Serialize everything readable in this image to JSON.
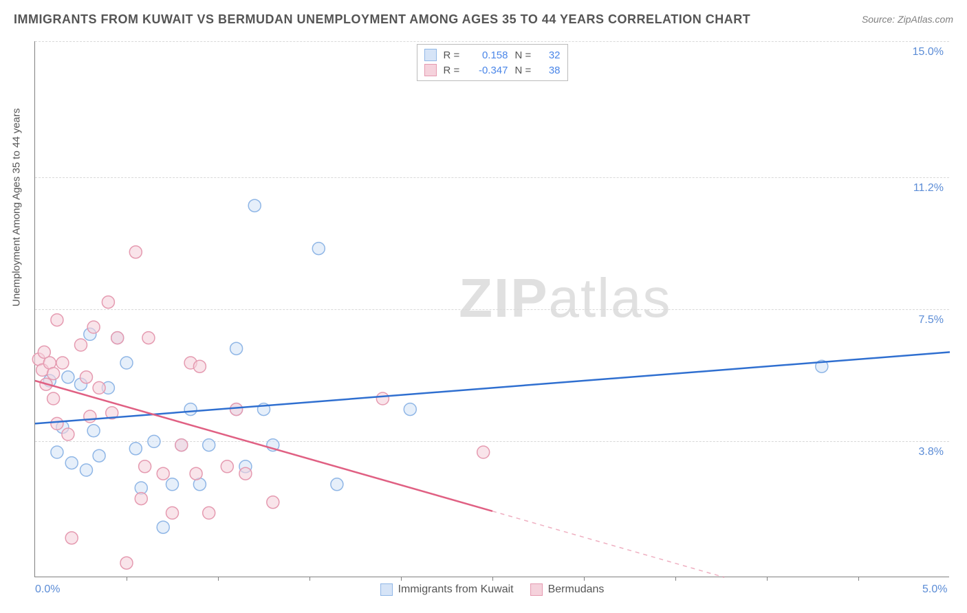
{
  "title": "IMMIGRANTS FROM KUWAIT VS BERMUDAN UNEMPLOYMENT AMONG AGES 35 TO 44 YEARS CORRELATION CHART",
  "source": "Source: ZipAtlas.com",
  "y_axis_title": "Unemployment Among Ages 35 to 44 years",
  "watermark_zip": "ZIP",
  "watermark_atlas": "atlas",
  "chart": {
    "type": "scatter",
    "xlim": [
      0.0,
      5.0
    ],
    "ylim": [
      0.0,
      15.0
    ],
    "x_ticks_no_label": [
      0.5,
      1.0,
      1.5,
      2.0,
      2.5,
      3.0,
      3.5,
      4.0,
      4.5
    ],
    "x_labels": [
      {
        "x": 0.0,
        "text": "0.0%"
      },
      {
        "x": 5.0,
        "text": "5.0%"
      }
    ],
    "y_gridlines": [
      {
        "y": 3.8,
        "label": "3.8%"
      },
      {
        "y": 7.5,
        "label": "7.5%"
      },
      {
        "y": 11.2,
        "label": "11.2%"
      },
      {
        "y": 15.0,
        "label": "15.0%"
      }
    ],
    "background_color": "#ffffff",
    "grid_color": "#d8d8d8",
    "axis_color": "#808080",
    "series": [
      {
        "id": "kuwait",
        "legend_label": "Immigrants from Kuwait",
        "marker_color": "#8fb6e6",
        "marker_fill": "#d6e4f7",
        "marker_fill_opacity": 0.6,
        "marker_radius": 9,
        "line_color": "#2f6fd0",
        "line_width": 2.5,
        "R": "0.158",
        "N": "32",
        "trend": {
          "x0": 0.0,
          "y0": 4.3,
          "x1": 5.0,
          "y1": 6.3,
          "solid_until_x": 5.0
        },
        "points": [
          [
            0.08,
            5.5
          ],
          [
            0.12,
            3.5
          ],
          [
            0.15,
            4.2
          ],
          [
            0.18,
            5.6
          ],
          [
            0.2,
            3.2
          ],
          [
            0.25,
            5.4
          ],
          [
            0.28,
            3.0
          ],
          [
            0.3,
            6.8
          ],
          [
            0.32,
            4.1
          ],
          [
            0.35,
            3.4
          ],
          [
            0.4,
            5.3
          ],
          [
            0.45,
            6.7
          ],
          [
            0.5,
            6.0
          ],
          [
            0.55,
            3.6
          ],
          [
            0.58,
            2.5
          ],
          [
            0.65,
            3.8
          ],
          [
            0.7,
            1.4
          ],
          [
            0.75,
            2.6
          ],
          [
            0.8,
            3.7
          ],
          [
            0.85,
            4.7
          ],
          [
            0.9,
            2.6
          ],
          [
            0.95,
            3.7
          ],
          [
            1.1,
            6.4
          ],
          [
            1.1,
            4.7
          ],
          [
            1.15,
            3.1
          ],
          [
            1.2,
            10.4
          ],
          [
            1.25,
            4.7
          ],
          [
            1.3,
            3.7
          ],
          [
            1.55,
            9.2
          ],
          [
            1.65,
            2.6
          ],
          [
            2.05,
            4.7
          ],
          [
            4.3,
            5.9
          ]
        ]
      },
      {
        "id": "bermudans",
        "legend_label": "Bermudans",
        "marker_color": "#e59ab0",
        "marker_fill": "#f5d2dc",
        "marker_fill_opacity": 0.6,
        "marker_radius": 9,
        "line_color": "#e06083",
        "line_width": 2.5,
        "R": "-0.347",
        "N": "38",
        "trend": {
          "x0": 0.0,
          "y0": 5.5,
          "x1": 5.0,
          "y1": -1.8,
          "solid_until_x": 2.5
        },
        "points": [
          [
            0.02,
            6.1
          ],
          [
            0.04,
            5.8
          ],
          [
            0.05,
            6.3
          ],
          [
            0.06,
            5.4
          ],
          [
            0.08,
            6.0
          ],
          [
            0.1,
            5.0
          ],
          [
            0.1,
            5.7
          ],
          [
            0.12,
            4.3
          ],
          [
            0.12,
            7.2
          ],
          [
            0.15,
            6.0
          ],
          [
            0.18,
            4.0
          ],
          [
            0.2,
            1.1
          ],
          [
            0.25,
            6.5
          ],
          [
            0.28,
            5.6
          ],
          [
            0.3,
            4.5
          ],
          [
            0.32,
            7.0
          ],
          [
            0.35,
            5.3
          ],
          [
            0.4,
            7.7
          ],
          [
            0.42,
            4.6
          ],
          [
            0.45,
            6.7
          ],
          [
            0.5,
            0.4
          ],
          [
            0.55,
            9.1
          ],
          [
            0.58,
            2.2
          ],
          [
            0.6,
            3.1
          ],
          [
            0.62,
            6.7
          ],
          [
            0.7,
            2.9
          ],
          [
            0.75,
            1.8
          ],
          [
            0.8,
            3.7
          ],
          [
            0.85,
            6.0
          ],
          [
            0.88,
            2.9
          ],
          [
            0.9,
            5.9
          ],
          [
            0.95,
            1.8
          ],
          [
            1.05,
            3.1
          ],
          [
            1.1,
            4.7
          ],
          [
            1.15,
            2.9
          ],
          [
            1.3,
            2.1
          ],
          [
            1.9,
            5.0
          ],
          [
            2.45,
            3.5
          ]
        ]
      }
    ]
  }
}
